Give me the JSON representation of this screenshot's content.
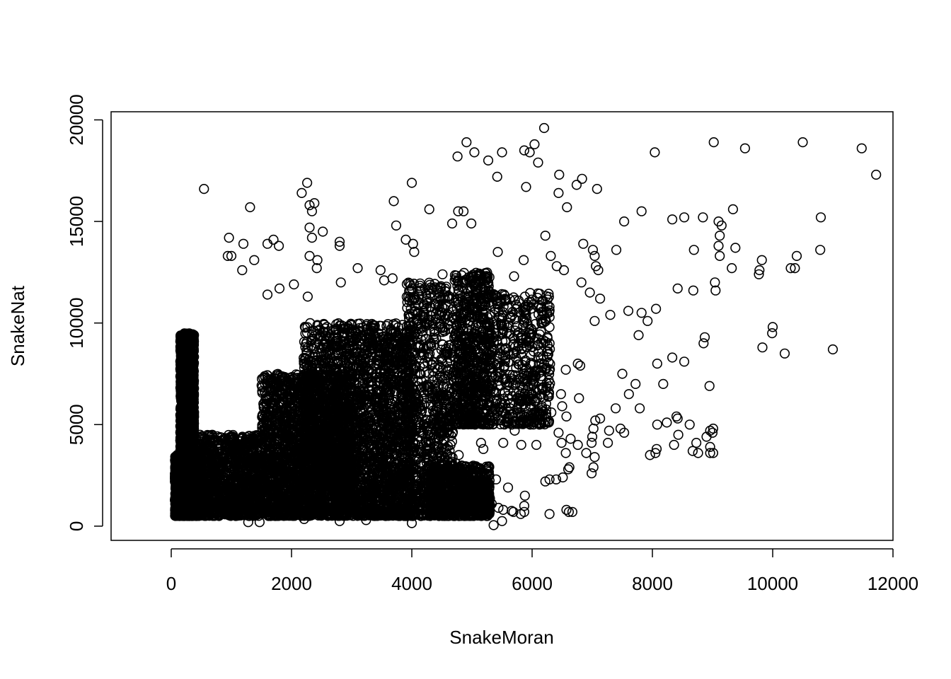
{
  "chart_data": {
    "type": "scatter",
    "title": "",
    "xlabel": "SnakeMoran",
    "ylabel": "SnakeNat",
    "xlim": [
      -1000,
      12000
    ],
    "ylim": [
      -700,
      20400
    ],
    "xticks": [
      0,
      2000,
      4000,
      6000,
      8000,
      10000,
      12000
    ],
    "yticks": [
      0,
      5000,
      10000,
      15000,
      20000
    ],
    "xtick_labels": [
      "0",
      "2000",
      "4000",
      "6000",
      "8000",
      "10000",
      "12000"
    ],
    "ytick_labels": [
      "0",
      "5000",
      "10000",
      "15000",
      "20000"
    ],
    "marker": "open-circle",
    "grid": false,
    "legend": "none",
    "series": [
      {
        "points": [
          [
            545,
            16600
          ],
          [
            1310,
            15700
          ],
          [
            1600,
            13900
          ],
          [
            1700,
            14100
          ],
          [
            1790,
            13800
          ],
          [
            2170,
            16400
          ],
          [
            2260,
            16900
          ],
          [
            2300,
            15800
          ],
          [
            2340,
            15500
          ],
          [
            2380,
            15900
          ],
          [
            2300,
            14700
          ],
          [
            2340,
            14200
          ],
          [
            2300,
            13300
          ],
          [
            2520,
            14500
          ],
          [
            2800,
            14000
          ],
          [
            1200,
            13900
          ],
          [
            960,
            14200
          ],
          [
            1000,
            13300
          ],
          [
            940,
            13300
          ],
          [
            3700,
            16000
          ],
          [
            4000,
            16900
          ],
          [
            4290,
            15600
          ],
          [
            4770,
            15500
          ],
          [
            4670,
            14900
          ],
          [
            4860,
            15500
          ],
          [
            4990,
            14900
          ],
          [
            5040,
            18400
          ],
          [
            4760,
            18200
          ],
          [
            4910,
            18900
          ],
          [
            5270,
            18000
          ],
          [
            5500,
            18400
          ],
          [
            5870,
            18500
          ],
          [
            5960,
            18400
          ],
          [
            6040,
            18800
          ],
          [
            6200,
            19600
          ],
          [
            6100,
            17900
          ],
          [
            5420,
            17200
          ],
          [
            5900,
            16700
          ],
          [
            6450,
            17300
          ],
          [
            6580,
            15700
          ],
          [
            6440,
            16400
          ],
          [
            6740,
            16800
          ],
          [
            6830,
            17100
          ],
          [
            6850,
            13900
          ],
          [
            7080,
            16600
          ],
          [
            7010,
            13600
          ],
          [
            7040,
            13300
          ],
          [
            7060,
            12800
          ],
          [
            7100,
            12600
          ],
          [
            7530,
            15000
          ],
          [
            7820,
            15500
          ],
          [
            8040,
            18400
          ],
          [
            9020,
            18900
          ],
          [
            9540,
            18600
          ],
          [
            10500,
            18900
          ],
          [
            11480,
            18600
          ],
          [
            11720,
            17300
          ],
          [
            8330,
            15100
          ],
          [
            8530,
            15200
          ],
          [
            8840,
            15200
          ],
          [
            9340,
            15600
          ],
          [
            9100,
            15000
          ],
          [
            9150,
            14800
          ],
          [
            9120,
            14300
          ],
          [
            9100,
            13800
          ],
          [
            9120,
            13300
          ],
          [
            9380,
            13700
          ],
          [
            9320,
            12700
          ],
          [
            9780,
            12600
          ],
          [
            9820,
            13100
          ],
          [
            9770,
            12400
          ],
          [
            10300,
            12700
          ],
          [
            10370,
            12700
          ],
          [
            10400,
            13300
          ],
          [
            10800,
            15200
          ],
          [
            10790,
            13600
          ],
          [
            8690,
            13600
          ],
          [
            9040,
            12000
          ],
          [
            9050,
            11600
          ],
          [
            8420,
            11700
          ],
          [
            8680,
            11600
          ],
          [
            7400,
            13600
          ],
          [
            7130,
            11200
          ],
          [
            6410,
            12800
          ],
          [
            6220,
            14300
          ],
          [
            6310,
            13300
          ],
          [
            6530,
            12600
          ],
          [
            6820,
            12000
          ],
          [
            6960,
            11500
          ],
          [
            5860,
            13100
          ],
          [
            5700,
            12300
          ],
          [
            5430,
            13500
          ],
          [
            5130,
            12400
          ],
          [
            5240,
            11300
          ],
          [
            4510,
            12400
          ],
          [
            4040,
            13500
          ],
          [
            4020,
            13900
          ],
          [
            3900,
            14100
          ],
          [
            3740,
            14800
          ],
          [
            3680,
            12200
          ],
          [
            3480,
            12600
          ],
          [
            3540,
            12100
          ],
          [
            2430,
            13100
          ],
          [
            2420,
            12700
          ],
          [
            2800,
            13800
          ],
          [
            2820,
            12000
          ],
          [
            3100,
            12700
          ],
          [
            1380,
            13100
          ],
          [
            1180,
            12600
          ],
          [
            1600,
            11400
          ],
          [
            1800,
            11700
          ],
          [
            2040,
            11900
          ],
          [
            2270,
            11300
          ],
          [
            4960,
            10100
          ],
          [
            5670,
            10400
          ],
          [
            6290,
            10800
          ],
          [
            7040,
            10100
          ],
          [
            7300,
            10400
          ],
          [
            7600,
            10600
          ],
          [
            7820,
            10500
          ],
          [
            7920,
            10100
          ],
          [
            8060,
            10700
          ],
          [
            10000,
            9800
          ],
          [
            9990,
            9500
          ],
          [
            9830,
            8800
          ],
          [
            10200,
            8500
          ],
          [
            11000,
            8700
          ],
          [
            8850,
            9000
          ],
          [
            8870,
            9300
          ],
          [
            7770,
            9400
          ],
          [
            8330,
            8300
          ],
          [
            8530,
            8100
          ],
          [
            8950,
            6900
          ],
          [
            8080,
            8000
          ],
          [
            7720,
            7000
          ],
          [
            7500,
            7500
          ],
          [
            7610,
            6500
          ],
          [
            7790,
            5800
          ],
          [
            7390,
            5800
          ],
          [
            8180,
            7000
          ],
          [
            9010,
            4800
          ],
          [
            8960,
            4700
          ],
          [
            8900,
            4400
          ],
          [
            9000,
            4600
          ],
          [
            8730,
            4100
          ],
          [
            8670,
            3700
          ],
          [
            8760,
            3600
          ],
          [
            8960,
            3600
          ],
          [
            9010,
            3600
          ],
          [
            8960,
            3900
          ],
          [
            8420,
            5300
          ],
          [
            8400,
            5400
          ],
          [
            8620,
            5000
          ],
          [
            8240,
            5100
          ],
          [
            8080,
            5000
          ],
          [
            7960,
            3500
          ],
          [
            8050,
            3600
          ],
          [
            8070,
            3800
          ],
          [
            8360,
            4000
          ],
          [
            8430,
            4500
          ],
          [
            7530,
            4600
          ],
          [
            7470,
            4800
          ],
          [
            7280,
            4700
          ],
          [
            7260,
            4100
          ],
          [
            7130,
            5300
          ],
          [
            7050,
            5200
          ],
          [
            7020,
            4800
          ],
          [
            7000,
            4400
          ],
          [
            6990,
            4100
          ],
          [
            7040,
            3400
          ],
          [
            7020,
            2900
          ],
          [
            6990,
            2600
          ],
          [
            6900,
            3600
          ],
          [
            6760,
            4000
          ],
          [
            6640,
            4300
          ],
          [
            6560,
            3600
          ],
          [
            6510,
            2400
          ],
          [
            6400,
            2300
          ],
          [
            6290,
            2300
          ],
          [
            6220,
            2200
          ],
          [
            6600,
            2800
          ],
          [
            6620,
            2900
          ],
          [
            6440,
            4600
          ],
          [
            6490,
            4100
          ],
          [
            6570,
            5400
          ],
          [
            6190,
            5100
          ],
          [
            6070,
            4000
          ],
          [
            5940,
            5300
          ],
          [
            6080,
            6300
          ],
          [
            5980,
            6000
          ],
          [
            5880,
            6500
          ],
          [
            5930,
            6900
          ],
          [
            6320,
            5600
          ],
          [
            6500,
            5900
          ],
          [
            6480,
            6500
          ],
          [
            6780,
            6300
          ],
          [
            6560,
            7700
          ],
          [
            6760,
            8000
          ],
          [
            6800,
            7900
          ],
          [
            5520,
            4100
          ],
          [
            5710,
            4700
          ],
          [
            5820,
            4000
          ],
          [
            5880,
            5100
          ],
          [
            6080,
            5600
          ],
          [
            5400,
            2300
          ],
          [
            5600,
            1900
          ],
          [
            5660,
            750
          ],
          [
            5690,
            700
          ],
          [
            5810,
            600
          ],
          [
            5880,
            1500
          ],
          [
            5870,
            1000
          ],
          [
            5870,
            700
          ],
          [
            6290,
            600
          ],
          [
            6570,
            800
          ],
          [
            6610,
            700
          ],
          [
            6670,
            700
          ],
          [
            5330,
            1100
          ],
          [
            5440,
            900
          ],
          [
            5520,
            800
          ],
          [
            5500,
            250
          ],
          [
            5360,
            50
          ],
          [
            5190,
            3800
          ],
          [
            5150,
            4100
          ],
          [
            4780,
            3500
          ],
          [
            4730,
            3100
          ],
          [
            4000,
            150
          ],
          [
            3240,
            300
          ],
          [
            2800,
            250
          ],
          [
            2210,
            350
          ],
          [
            1280,
            200
          ],
          [
            1470,
            200
          ],
          [
            1730,
            500
          ]
        ]
      }
    ]
  }
}
